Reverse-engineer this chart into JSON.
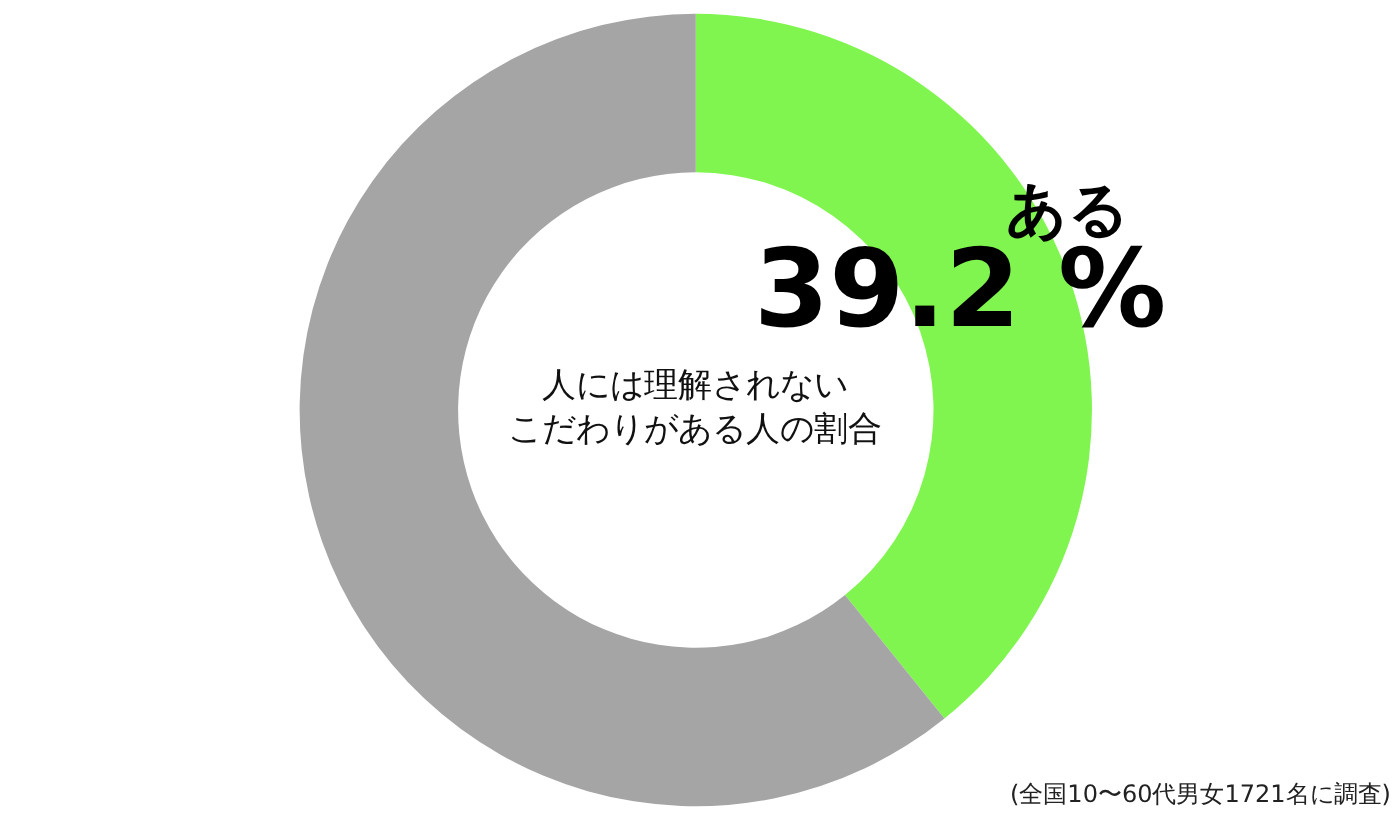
{
  "chart_data": {
    "type": "donut",
    "title": "人には理解されないこだわりがある人の割合",
    "categories": [
      "ある",
      null
    ],
    "values": [
      39.2,
      60.8
    ],
    "value_labels": [
      "39.2 %",
      null
    ],
    "colors": [
      "#80f54f",
      "#a5a5a5"
    ],
    "legend": false,
    "annotations": [
      "(全国10〜60代男女1721名に調査)"
    ]
  }
}
